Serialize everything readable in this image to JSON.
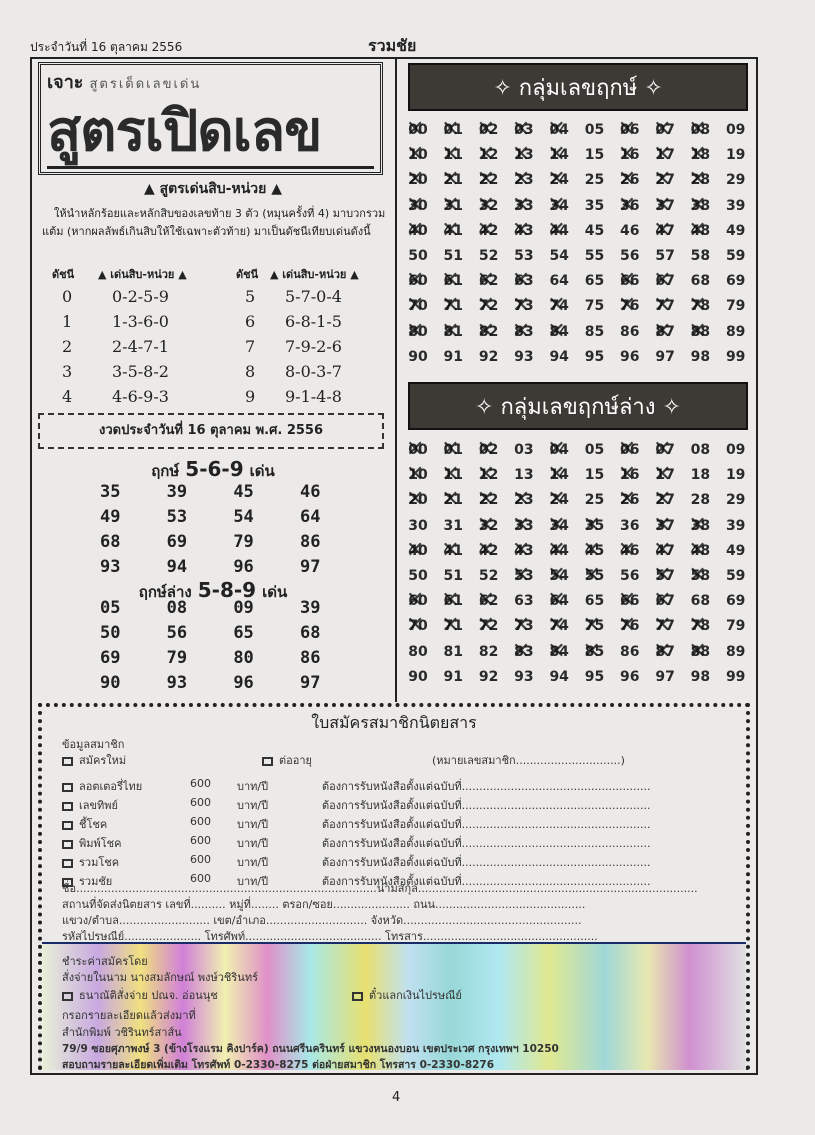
{
  "header": {
    "date": "ประจำวันที่ 16 ตุลาคม 2556",
    "brand": "รวมชัย"
  },
  "title": {
    "kicker": "เจาะ",
    "kicker_deco": "สูตรเด็ดเลขเด่น",
    "main": "สูตรเปิดเลข"
  },
  "formula": {
    "title": "▲ สูตรเด่นสิบ-หน่วย ▲",
    "text": "ให้นำหลักร้อยและหลักสิบของเลขท้าย 3 ตัว (หมุนครั้งที่ 4) มาบวกรวมแต้ม (หากผลลัพธ์เกินสิบให้ใช้เฉพาะตัวท้าย) มาเป็นดัชนีเทียบเด่นดังนี้",
    "col_index": "ดัชนี",
    "col_value": "▲ เด่นสิบ-หน่วย ▲",
    "rows": [
      [
        "0",
        "0-2-5-9"
      ],
      [
        "1",
        "1-3-6-0"
      ],
      [
        "2",
        "2-4-7-1"
      ],
      [
        "3",
        "3-5-8-2"
      ],
      [
        "4",
        "4-6-9-3"
      ],
      [
        "5",
        "5-7-0-4"
      ],
      [
        "6",
        "6-8-1-5"
      ],
      [
        "7",
        "7-9-2-6"
      ],
      [
        "8",
        "8-0-3-7"
      ],
      [
        "9",
        "9-1-4-8"
      ]
    ]
  },
  "draw_date": "งวดประจำวันที่ 16 ตุลาคม พ.ศ. 2556",
  "lucky_upper": {
    "label": "ฤกษ์",
    "digits": "5-6-9",
    "suffix": "เด่น",
    "numbers": [
      "35",
      "39",
      "45",
      "46",
      "49",
      "53",
      "54",
      "64",
      "68",
      "69",
      "79",
      "86",
      "93",
      "94",
      "96",
      "97"
    ]
  },
  "lucky_lower": {
    "label": "ฤกษ์ล่าง",
    "digits": "5-8-9",
    "suffix": "เด่น",
    "numbers": [
      "05",
      "08",
      "09",
      "39",
      "50",
      "56",
      "65",
      "68",
      "69",
      "79",
      "80",
      "86",
      "90",
      "93",
      "96",
      "97"
    ]
  },
  "grid_upper": {
    "title": "✧ กลุ่มเลขฤกษ์ ✧",
    "crossed": [
      0,
      1,
      2,
      3,
      4,
      6,
      7,
      8,
      10,
      11,
      12,
      13,
      14,
      16,
      17,
      18,
      20,
      21,
      22,
      23,
      24,
      26,
      27,
      28,
      30,
      31,
      32,
      33,
      34,
      36,
      37,
      38,
      40,
      41,
      42,
      43,
      44,
      47,
      48,
      60,
      61,
      62,
      63,
      66,
      67,
      70,
      71,
      72,
      73,
      74,
      76,
      77,
      78,
      80,
      81,
      82,
      83,
      84,
      87,
      88
    ]
  },
  "grid_lower": {
    "title": "✧ กลุ่มเลขฤกษ์ล่าง ✧",
    "crossed": [
      0,
      1,
      2,
      4,
      6,
      7,
      10,
      11,
      12,
      14,
      16,
      17,
      20,
      21,
      22,
      23,
      24,
      26,
      27,
      32,
      33,
      34,
      35,
      37,
      38,
      40,
      41,
      42,
      43,
      44,
      45,
      46,
      47,
      48,
      53,
      54,
      55,
      57,
      58,
      60,
      61,
      62,
      64,
      66,
      67,
      70,
      71,
      72,
      73,
      74,
      75,
      76,
      77,
      78,
      83,
      84,
      85,
      87,
      88
    ]
  },
  "form": {
    "title": "ใบสมัครสมาชิกนิตยสาร",
    "section": "ข้อมูลสมาชิก",
    "new": "สมัครใหม่",
    "renew": "ต่ออายุ",
    "member_no": "(หมายเลขสมาชิก..............................)",
    "subs": [
      {
        "name": "ลอตเตอรี่ไทย",
        "price": "600",
        "unit": "บาท/ปี",
        "start": "ต้องการรับหนังสือตั้งแต่ฉบับที่......................................................"
      },
      {
        "name": "เลขทิพย์",
        "price": "600",
        "unit": "บาท/ปี",
        "start": "ต้องการรับหนังสือตั้งแต่ฉบับที่......................................................"
      },
      {
        "name": "ชี้โชค",
        "price": "600",
        "unit": "บาท/ปี",
        "start": "ต้องการรับหนังสือตั้งแต่ฉบับที่......................................................"
      },
      {
        "name": "พิมพ์โชค",
        "price": "600",
        "unit": "บาท/ปี",
        "start": "ต้องการรับหนังสือตั้งแต่ฉบับที่......................................................"
      },
      {
        "name": "รวมโชค",
        "price": "600",
        "unit": "บาท/ปี",
        "start": "ต้องการรับหนังสือตั้งแต่ฉบับที่......................................................"
      },
      {
        "name": "รวมชัย",
        "price": "600",
        "unit": "บาท/ปี",
        "start": "ต้องการรับหนังสือตั้งแต่ฉบับที่......................................................"
      }
    ],
    "lines": [
      "ชื่อ......................................................................................นามสกุล................................................................................",
      "สถานที่จัดส่งนิตยสาร เลขที่.......... หมู่ที่........ ตรอก/ซอย...................... ถนน...........................................",
      "แขวง/ตำบล.......................... เขต/อำเภอ............................. จังหวัด...................................................",
      "รหัสไปรษณีย์...................... โทรศัพท์....................................... โทรสาร.................................................."
    ],
    "pay_title": "ชำระค่าสมัครโดย",
    "pay_to": "สั่งจ่ายในนาม นางสมลักษณ์ พงษ์วชิรินทร์",
    "pay_opt1": "ธนาณัติสั่งจ่าย ปณจ. อ่อนนุช",
    "pay_opt2": "ตั๋วแลกเงินไปรษณีย์",
    "send_to": "กรอกรายละเอียดแล้วส่งมาที่",
    "publisher": "สำนักพิมพ์ วชิรินทร์สาส์น",
    "address": "79/9 ซอยศุภาพงษ์ 3 (ข้างโรงแรม คิงปาร์ค) ถนนศรีนครินทร์ แขวงหนองบอน เขตประเวศ กรุงเทพฯ 10250",
    "contact": "สอบถามรายละเอียดเพิ่มเติม โทรศัพท์ 0-2330-8275 ต่อฝ่ายสมาชิก โทรสาร 0-2330-8276"
  },
  "page_number": "4"
}
